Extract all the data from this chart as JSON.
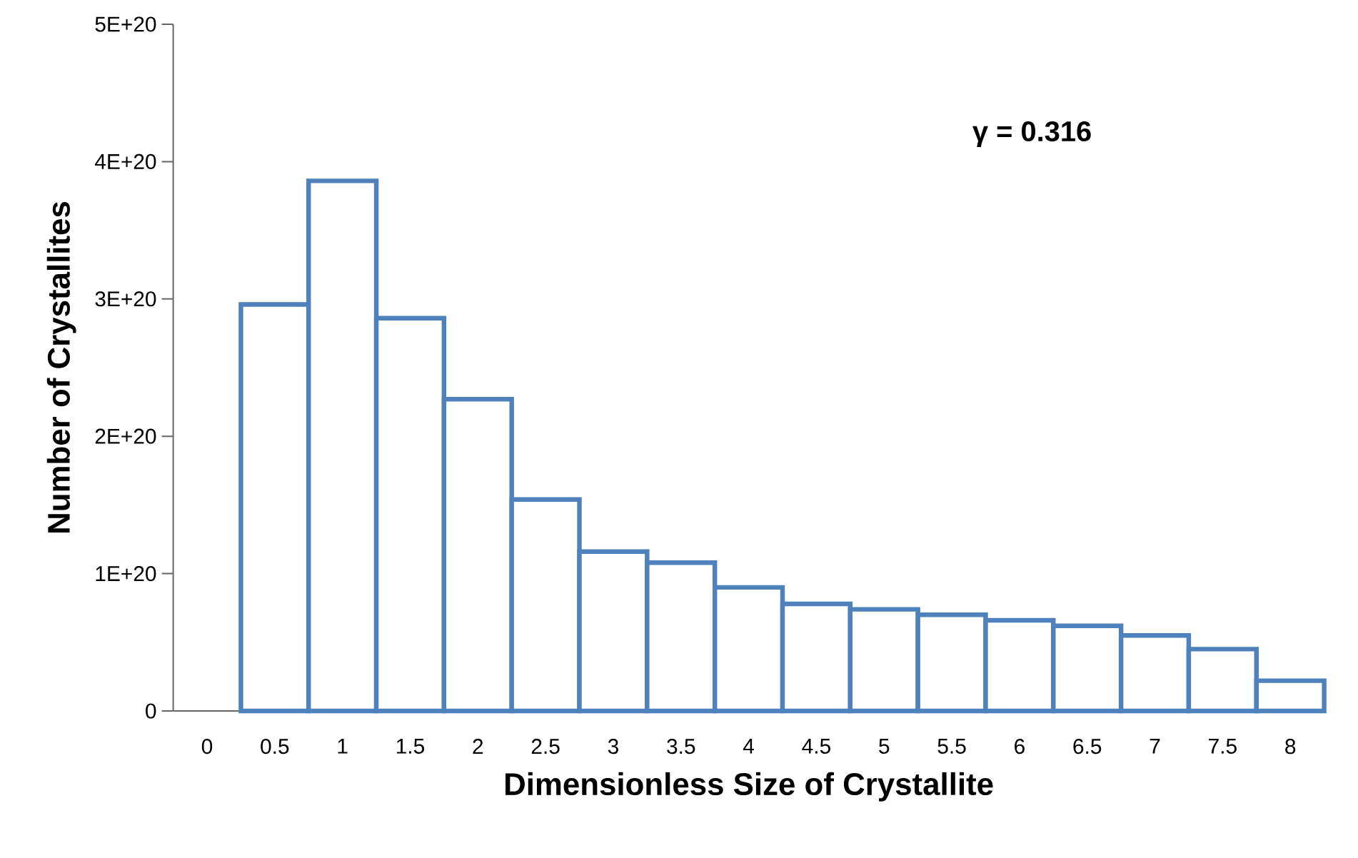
{
  "chart_data": {
    "type": "bar",
    "xlabel": "Dimensionless Size of Crystallite",
    "ylabel": "Number of Crystallites",
    "categories": [
      "0",
      "0.5",
      "1",
      "1.5",
      "2",
      "2.5",
      "3",
      "3.5",
      "4",
      "4.5",
      "5",
      "5.5",
      "6",
      "6.5",
      "7",
      "7.5",
      "8"
    ],
    "values": [
      null,
      2.96e+20,
      3.86e+20,
      2.86e+20,
      2.27e+20,
      1.54e+20,
      1.16e+20,
      1.08e+20,
      9e+19,
      7.8e+19,
      7.4e+19,
      7e+19,
      6.6e+19,
      6.2e+19,
      5.5e+19,
      4.5e+19,
      2.2e+19
    ],
    "color": "#4f81bd",
    "ylim": [
      0,
      5e+20
    ],
    "yticks": [
      0,
      {
        "value": 1e+20,
        "label": "1E+20"
      },
      {
        "value": 2e+20,
        "label": "2E+20"
      },
      {
        "value": 3e+20,
        "label": "3E+20"
      },
      {
        "value": 4e+20,
        "label": "4E+20"
      },
      {
        "value": 5e+20,
        "label": "5E+20"
      }
    ],
    "annotations": [
      "**γ = 0.316**"
    ]
  }
}
